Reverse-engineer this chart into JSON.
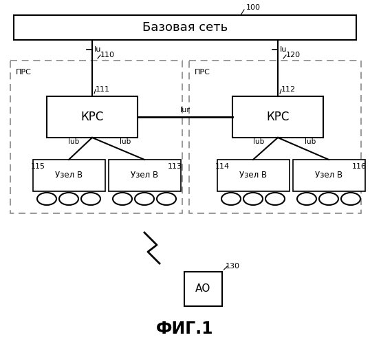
{
  "bg_color": "#ffffff",
  "title_label": "ФИГ.1",
  "core_network_label": "Базовая сеть",
  "left_prs_label": "ПРС",
  "right_prs_label": "ПРС",
  "left_krs_label": "КРС",
  "right_krs_label": "КРС",
  "ref_100": "100",
  "ref_110": "110",
  "ref_111": "111",
  "ref_112": "112",
  "ref_113": "113",
  "ref_114": "114",
  "ref_115": "115",
  "ref_116": "116",
  "ref_120": "120",
  "ref_130": "130",
  "label_iu": "Iu",
  "label_lub": "Iub",
  "label_iur": "Iur",
  "label_node_b": "Узел В",
  "label_ao": "АО",
  "node_color": "#ffffff",
  "dashed_color": "#888888",
  "line_color": "#000000",
  "font_color": "#000000"
}
